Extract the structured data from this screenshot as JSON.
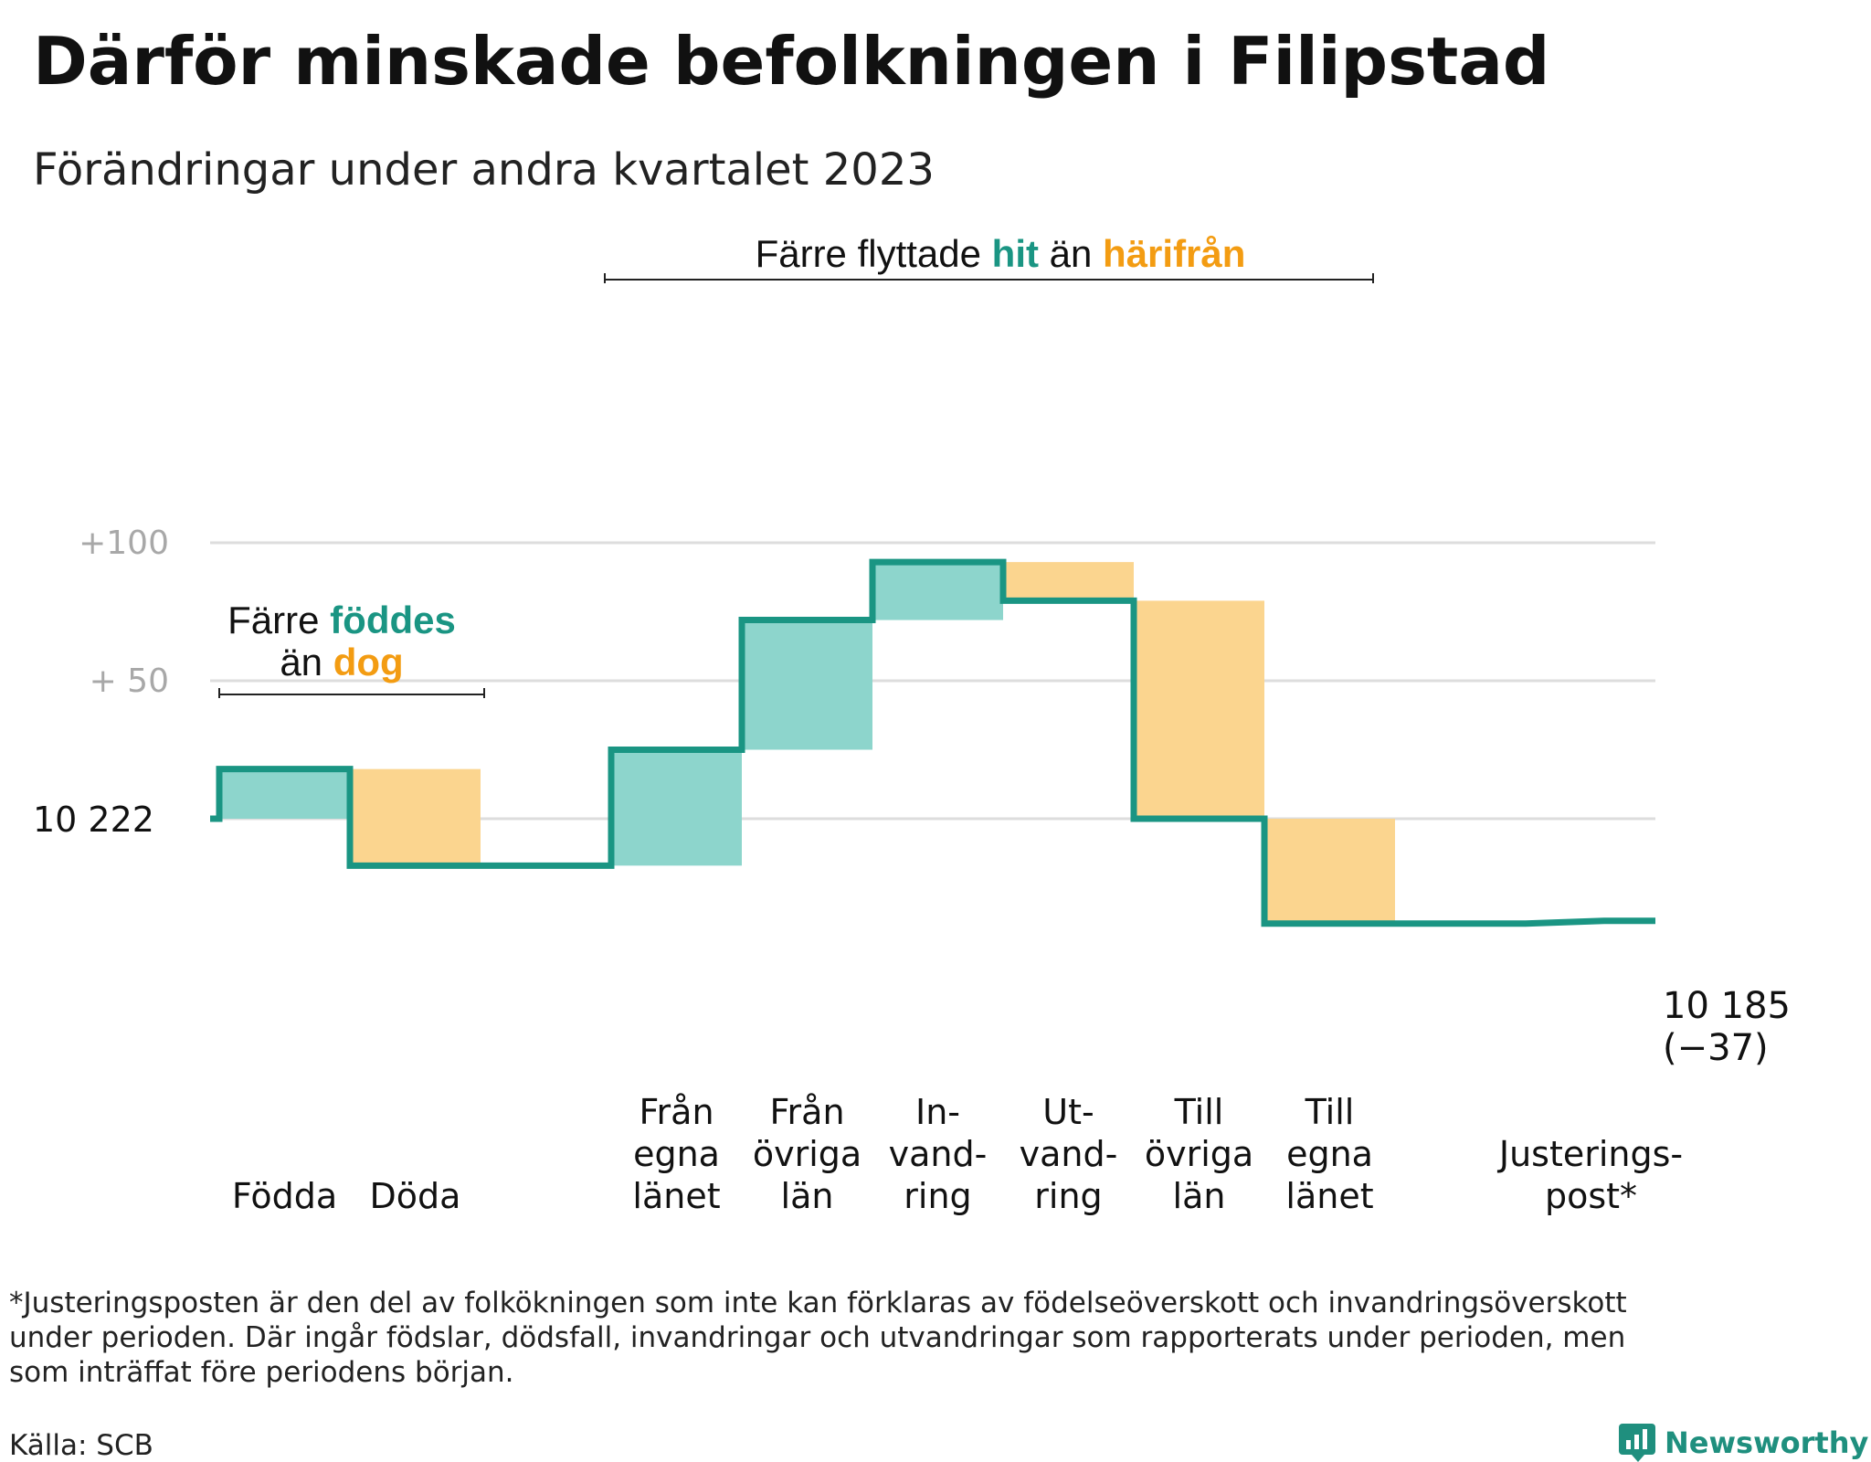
{
  "colors": {
    "teal": "#1a9583",
    "teal_fill": "#8dd5cc",
    "orange": "#f39c12",
    "orange_fill": "#fbd58f",
    "grid": "#dddddd"
  },
  "header": {
    "title": "Därför minskade befolkningen i Filipstad",
    "subtitle": "Förändringar under andra kvartalet 2023"
  },
  "chart_data": {
    "type": "waterfall",
    "baseline": 10222,
    "baseline_label": "10  222",
    "ylim": [
      -40,
      100
    ],
    "y_ticks": [
      {
        "value": 100,
        "label": "+100"
      },
      {
        "value": 50,
        "label": "+  50"
      }
    ],
    "grid": true,
    "steps": [
      {
        "key": "fodda",
        "label_lines": [
          "Födda"
        ],
        "change": 18,
        "kind": "in"
      },
      {
        "key": "doda",
        "label_lines": [
          "Döda"
        ],
        "change": -35,
        "kind": "out"
      },
      {
        "key": "gap",
        "label_lines": [],
        "change": 0,
        "kind": "none"
      },
      {
        "key": "fran-egna-lanet",
        "label_lines": [
          "Från",
          "egna",
          "länet"
        ],
        "change": 42,
        "kind": "in"
      },
      {
        "key": "fran-ovriga-lan",
        "label_lines": [
          "Från",
          "övriga",
          "län"
        ],
        "change": 47,
        "kind": "in"
      },
      {
        "key": "invandring",
        "label_lines": [
          "In-",
          "vand-",
          "ring"
        ],
        "change": 21,
        "kind": "in"
      },
      {
        "key": "utvandring",
        "label_lines": [
          "Ut-",
          "vand-",
          "ring"
        ],
        "change": -14,
        "kind": "out"
      },
      {
        "key": "till-ovriga-lan",
        "label_lines": [
          "Till",
          "övriga",
          "län"
        ],
        "change": -79,
        "kind": "out"
      },
      {
        "key": "till-egna-lanet",
        "label_lines": [
          "Till",
          "egna",
          "länet"
        ],
        "change": -38,
        "kind": "out"
      },
      {
        "key": "gap2",
        "label_lines": [],
        "change": 0,
        "kind": "none"
      },
      {
        "key": "justeringspost",
        "label_lines": [
          "Justerings-",
          "post*"
        ],
        "change": 1,
        "kind": "adjust"
      }
    ],
    "end_label": "10 185",
    "end_change_label": "(−37)",
    "annotations": {
      "births": {
        "line1_pre": "Färre ",
        "line1_em": "föddes",
        "line2_pre": "än ",
        "line2_em": "dog"
      },
      "moves": {
        "pre": "Färre flyttade ",
        "em1": "hit",
        "mid": " än ",
        "em2": "härifrån"
      }
    }
  },
  "footer": {
    "footnote_lines": [
      "*Justeringsposten är den del av folkökningen som inte kan förklaras av födelseöverskott och invandringsöverskott",
      "under perioden. Där ingår födslar, dödsfall, invandringar och utvandringar som rapporterats under perioden, men",
      "som inträffat före periodens början."
    ],
    "source": "Källa: SCB",
    "brand": "Newsworthy",
    "brand_icon": "bar-chart-speech-icon"
  }
}
